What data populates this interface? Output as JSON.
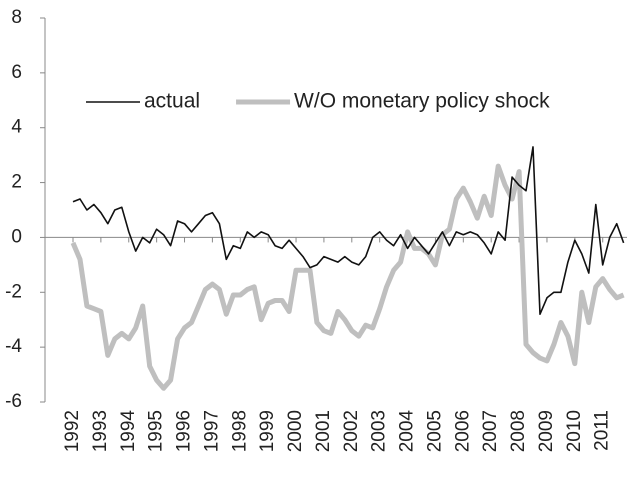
{
  "chart_data": {
    "type": "line",
    "categories": [
      "1992",
      null,
      null,
      null,
      "1993",
      null,
      null,
      null,
      "1994",
      null,
      null,
      null,
      "1995",
      null,
      null,
      null,
      "1996",
      null,
      null,
      null,
      "1997",
      null,
      null,
      null,
      "1998",
      null,
      null,
      null,
      "1999",
      null,
      null,
      null,
      "2000",
      null,
      null,
      null,
      "2001",
      null,
      null,
      null,
      "2002",
      null,
      null,
      null,
      "2003",
      null,
      null,
      null,
      "2004",
      null,
      null,
      null,
      "2005",
      null,
      null,
      null,
      "2006",
      null,
      null,
      null,
      "2007",
      null,
      null,
      null,
      "2008",
      null,
      null,
      null,
      "2009",
      null,
      null,
      null,
      "2010",
      null,
      null,
      null,
      "2011",
      null,
      null,
      null
    ],
    "series": [
      {
        "name": "actual",
        "color": "#111111",
        "width": 1.6,
        "values": [
          1.3,
          1.4,
          1.0,
          1.2,
          0.9,
          0.5,
          1.0,
          1.1,
          0.2,
          -0.5,
          0.0,
          -0.2,
          0.3,
          0.1,
          -0.3,
          0.6,
          0.5,
          0.2,
          0.5,
          0.8,
          0.9,
          0.5,
          -0.8,
          -0.3,
          -0.4,
          0.2,
          0.0,
          0.2,
          0.1,
          -0.3,
          -0.4,
          -0.1,
          -0.4,
          -0.7,
          -1.1,
          -1.0,
          -0.7,
          -0.8,
          -0.9,
          -0.7,
          -0.9,
          -1.0,
          -0.7,
          0.0,
          0.2,
          -0.1,
          -0.3,
          0.1,
          -0.4,
          0.0,
          -0.3,
          -0.6,
          -0.2,
          0.2,
          -0.3,
          0.2,
          0.1,
          0.2,
          0.1,
          -0.2,
          -0.6,
          0.2,
          -0.1,
          2.2,
          1.9,
          1.7,
          3.3,
          -2.8,
          -2.2,
          -2.0,
          -2.0,
          -0.9,
          -0.1,
          -0.6,
          -1.3,
          1.2,
          -1.0,
          0.0,
          0.5,
          -0.2
        ]
      },
      {
        "name": "W/O monetary policy shock",
        "color": "#bfbfbf",
        "width": 5,
        "values": [
          -0.2,
          -0.8,
          -2.5,
          -2.6,
          -2.7,
          -4.3,
          -3.7,
          -3.5,
          -3.7,
          -3.3,
          -2.5,
          -4.7,
          -5.2,
          -5.5,
          -5.2,
          -3.7,
          -3.3,
          -3.1,
          -2.5,
          -1.9,
          -1.7,
          -1.9,
          -2.8,
          -2.1,
          -2.1,
          -1.9,
          -1.8,
          -3.0,
          -2.4,
          -2.3,
          -2.3,
          -2.7,
          -1.2,
          -1.2,
          -1.2,
          -3.1,
          -3.4,
          -3.5,
          -2.7,
          -3.0,
          -3.4,
          -3.6,
          -3.2,
          -3.3,
          -2.6,
          -1.8,
          -1.2,
          -0.9,
          0.2,
          -0.4,
          -0.4,
          -0.6,
          -1.0,
          0.1,
          0.3,
          1.4,
          1.8,
          1.3,
          0.7,
          1.5,
          0.8,
          2.6,
          1.9,
          1.4,
          2.4,
          -3.9,
          -4.2,
          -4.4,
          -4.5,
          -3.9,
          -3.1,
          -3.6,
          -4.6,
          -2.0,
          -3.1,
          -1.8,
          -1.5,
          -1.9,
          -2.2,
          -2.1
        ]
      }
    ],
    "ylim": [
      -6,
      8
    ],
    "yticks": [
      -6,
      -4,
      -2,
      0,
      2,
      4,
      6,
      8
    ],
    "legend": "upper left",
    "grid": false
  }
}
